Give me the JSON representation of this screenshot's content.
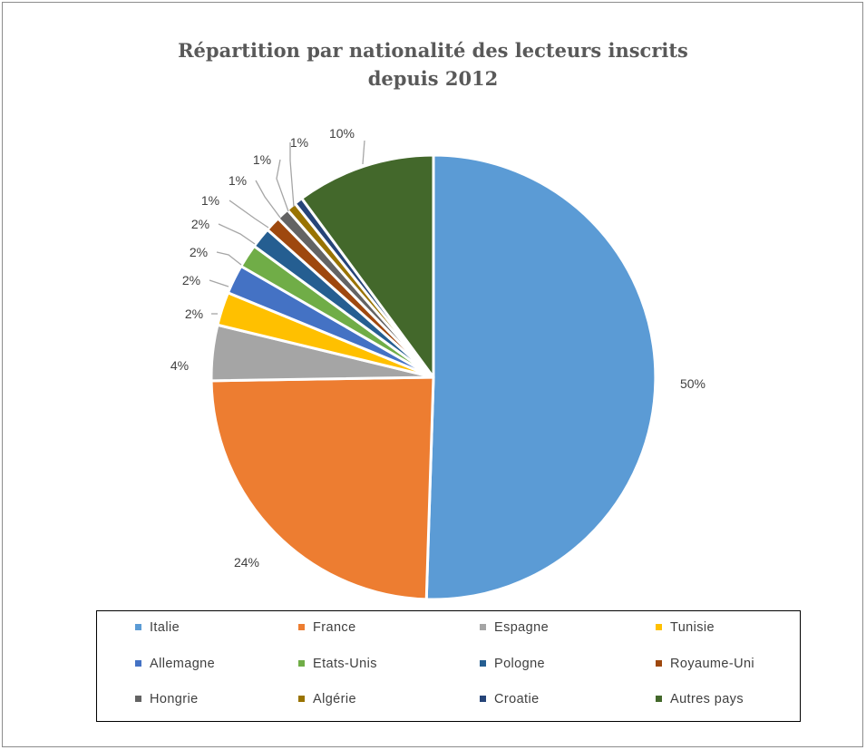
{
  "chart_data": {
    "type": "pie",
    "title_lines": [
      "Répartition par nationalité des lecteurs inscrits",
      "depuis 2012"
    ],
    "legend_placement": "bottom",
    "slices": [
      {
        "name": "Italie",
        "value": 50,
        "label": "50%",
        "color": "#5B9BD5"
      },
      {
        "name": "France",
        "value": 24,
        "label": "24%",
        "color": "#ED7D31"
      },
      {
        "name": "Espagne",
        "value": 4,
        "label": "4%",
        "color": "#A5A5A5"
      },
      {
        "name": "Tunisie",
        "value": 2.4,
        "label": "2%",
        "color": "#FFC000"
      },
      {
        "name": "Allemagne",
        "value": 2.1,
        "label": "2%",
        "color": "#4472C4"
      },
      {
        "name": "Etats-Unis",
        "value": 1.7,
        "label": "2%",
        "color": "#70AD47"
      },
      {
        "name": "Pologne",
        "value": 1.5,
        "label": "2%",
        "color": "#255E91"
      },
      {
        "name": "Royaume-Uni",
        "value": 1.1,
        "label": "1%",
        "color": "#9E480E"
      },
      {
        "name": "Hongrie",
        "value": 0.9,
        "label": "1%",
        "color": "#636363"
      },
      {
        "name": "Algérie",
        "value": 0.7,
        "label": "1%",
        "color": "#997300"
      },
      {
        "name": "Croatie",
        "value": 0.6,
        "label": "1%",
        "color": "#264478"
      },
      {
        "name": "Autres pays",
        "value": 10,
        "label": "10%",
        "color": "#43682B"
      }
    ]
  }
}
